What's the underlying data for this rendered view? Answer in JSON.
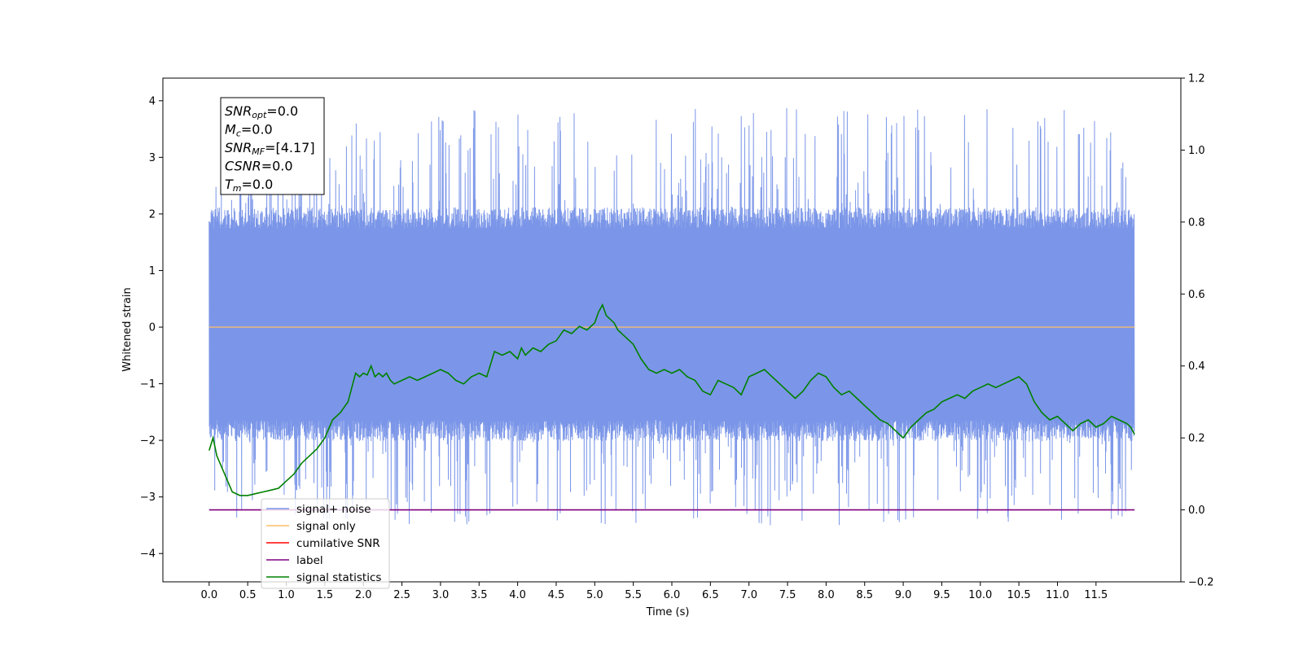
{
  "chart_data": {
    "type": "line",
    "title": "",
    "xlabel": "Time (s)",
    "ylabel": "Whitened strain",
    "xlim": [
      -0.6,
      12.6
    ],
    "ylim": [
      -4.5,
      4.4
    ],
    "y2lim": [
      -0.2,
      1.2
    ],
    "x_ticks": [
      0,
      0.5,
      1,
      1.5,
      2,
      2.5,
      3,
      3.5,
      4,
      4.5,
      5,
      5.5,
      6,
      6.5,
      7,
      7.5,
      8,
      8.5,
      9,
      9.5,
      10,
      10.5,
      11,
      11.5
    ],
    "x_tick_labels": [
      "0.0",
      "0.5",
      "1.0",
      "1.5",
      "2.0",
      "2.5",
      "3.0",
      "3.5",
      "4.0",
      "4.5",
      "5.0",
      "5.5",
      "6.0",
      "6.5",
      "7.0",
      "7.5",
      "8.0",
      "8.5",
      "9.0",
      "9.5",
      "10.0",
      "10.5",
      "11.0",
      "11.5"
    ],
    "y_ticks": [
      4,
      3,
      2,
      1,
      0,
      -1,
      -2,
      -3,
      -4
    ],
    "y_tick_labels": [
      "4",
      "3",
      "2",
      "1",
      "0",
      "−1",
      "−2",
      "−3",
      "−4"
    ],
    "y2_ticks": [
      1.2,
      1.0,
      0.8,
      0.6,
      0.4,
      0.2,
      0.0,
      -0.2
    ],
    "y2_tick_labels": [
      "1.2",
      "1.0",
      "0.8",
      "0.6",
      "0.4",
      "0.2",
      "0.0",
      "−0.2"
    ],
    "grid": false,
    "legend_position": "lower-left",
    "noise": {
      "x_start": 0,
      "x_end": 12.0,
      "typical_upper": 2.0,
      "typical_lower": -1.9,
      "color": "#7b96e8"
    },
    "series": [
      {
        "name": "signal+ noise",
        "color": "#7b96e8",
        "axis": "left",
        "kind": "noise"
      },
      {
        "name": "signal only",
        "color": "#ffbf66",
        "axis": "left",
        "x": [
          0,
          12.0
        ],
        "y": [
          0,
          0
        ]
      },
      {
        "name": "cumilative SNR",
        "color": "#ff0000",
        "axis": "left",
        "x": [],
        "y": []
      },
      {
        "name": "label",
        "color": "#800080",
        "axis": "right",
        "x": [
          0,
          12.0
        ],
        "y": [
          0,
          0
        ]
      },
      {
        "name": "signal statistics",
        "color": "#008000",
        "axis": "right",
        "x": [
          0,
          0.05,
          0.1,
          0.2,
          0.3,
          0.4,
          0.5,
          0.6,
          0.7,
          0.8,
          0.9,
          1.0,
          1.1,
          1.2,
          1.3,
          1.4,
          1.5,
          1.6,
          1.7,
          1.8,
          1.9,
          1.95,
          2.0,
          2.05,
          2.1,
          2.15,
          2.2,
          2.25,
          2.3,
          2.35,
          2.4,
          2.5,
          2.6,
          2.7,
          2.8,
          2.9,
          3.0,
          3.1,
          3.2,
          3.3,
          3.4,
          3.5,
          3.6,
          3.7,
          3.8,
          3.9,
          4.0,
          4.05,
          4.1,
          4.15,
          4.2,
          4.3,
          4.4,
          4.5,
          4.6,
          4.7,
          4.8,
          4.9,
          5.0,
          5.05,
          5.1,
          5.15,
          5.2,
          5.25,
          5.3,
          5.4,
          5.5,
          5.6,
          5.7,
          5.8,
          5.9,
          6.0,
          6.1,
          6.2,
          6.3,
          6.4,
          6.5,
          6.6,
          6.7,
          6.8,
          6.9,
          7.0,
          7.1,
          7.2,
          7.3,
          7.4,
          7.5,
          7.6,
          7.7,
          7.8,
          7.9,
          8.0,
          8.1,
          8.2,
          8.3,
          8.4,
          8.5,
          8.6,
          8.7,
          8.8,
          8.9,
          9.0,
          9.1,
          9.2,
          9.3,
          9.4,
          9.5,
          9.6,
          9.7,
          9.8,
          9.9,
          10.0,
          10.1,
          10.2,
          10.3,
          10.4,
          10.5,
          10.6,
          10.7,
          10.8,
          10.9,
          11.0,
          11.1,
          11.2,
          11.3,
          11.4,
          11.5,
          11.6,
          11.7,
          11.8,
          11.9,
          11.95,
          12.0
        ],
        "y": [
          0.165,
          0.2,
          0.15,
          0.1,
          0.05,
          0.04,
          0.04,
          0.045,
          0.05,
          0.055,
          0.06,
          0.08,
          0.1,
          0.13,
          0.15,
          0.17,
          0.2,
          0.25,
          0.27,
          0.3,
          0.38,
          0.37,
          0.38,
          0.375,
          0.4,
          0.37,
          0.38,
          0.37,
          0.38,
          0.36,
          0.35,
          0.36,
          0.37,
          0.36,
          0.37,
          0.38,
          0.39,
          0.38,
          0.36,
          0.35,
          0.37,
          0.38,
          0.37,
          0.44,
          0.43,
          0.44,
          0.42,
          0.45,
          0.43,
          0.44,
          0.45,
          0.44,
          0.46,
          0.47,
          0.5,
          0.49,
          0.51,
          0.5,
          0.52,
          0.55,
          0.57,
          0.54,
          0.53,
          0.52,
          0.5,
          0.48,
          0.46,
          0.42,
          0.39,
          0.38,
          0.39,
          0.38,
          0.39,
          0.37,
          0.36,
          0.33,
          0.32,
          0.36,
          0.35,
          0.34,
          0.32,
          0.37,
          0.38,
          0.39,
          0.37,
          0.35,
          0.33,
          0.31,
          0.33,
          0.36,
          0.38,
          0.37,
          0.34,
          0.32,
          0.33,
          0.31,
          0.29,
          0.27,
          0.25,
          0.24,
          0.22,
          0.2,
          0.23,
          0.25,
          0.27,
          0.28,
          0.3,
          0.31,
          0.32,
          0.31,
          0.33,
          0.34,
          0.35,
          0.34,
          0.35,
          0.36,
          0.37,
          0.35,
          0.3,
          0.27,
          0.25,
          0.26,
          0.24,
          0.22,
          0.24,
          0.25,
          0.23,
          0.24,
          0.26,
          0.25,
          0.24,
          0.23,
          0.21
        ]
      }
    ],
    "annotations": [
      {
        "label": "SNR",
        "sub": "opt",
        "value": "=0.0"
      },
      {
        "label": "M",
        "sub": "c",
        "value": "=0.0"
      },
      {
        "label": "SNR",
        "sub": "MF",
        "value": "=[4.17]"
      },
      {
        "label": "CSNR",
        "sub": "",
        "value": "=0.0"
      },
      {
        "label": "T",
        "sub": "m",
        "value": "=0.0"
      }
    ]
  }
}
